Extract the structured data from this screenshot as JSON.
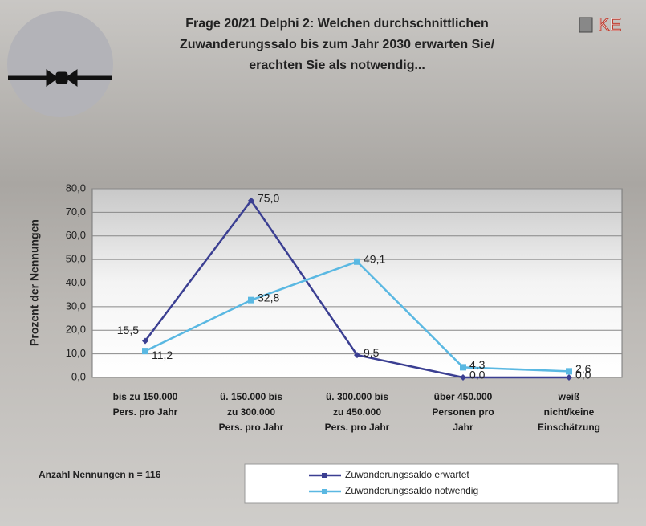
{
  "chart_data": {
    "type": "line",
    "title": [
      "Frage 20/21 Delphi 2: Welchen durchschnittlichen",
      "Zuwanderungssalo bis zum Jahr 2030 erwarten Sie/",
      "erachten Sie als notwendig..."
    ],
    "logo": "KE",
    "y_label": "Prozent der Nennungen",
    "annotation": "Anzahl Nennungen n = 116",
    "categories": [
      [
        "bis zu 150.000",
        "Pers. pro Jahr"
      ],
      [
        "ü. 150.000 bis",
        "zu 300.000",
        "Pers. pro Jahr"
      ],
      [
        "ü. 300.000 bis",
        "zu 450.000",
        "Pers. pro Jahr"
      ],
      [
        "über 450.000",
        "Personen pro",
        "Jahr"
      ],
      [
        "weiß",
        "nicht/keine",
        "Einschätzung"
      ]
    ],
    "series": [
      {
        "name": "Zuwanderungssaldo erwartet",
        "color": "#3b3f92",
        "values": [
          15.5,
          75.0,
          9.5,
          0.0,
          0.0
        ],
        "value_labels": [
          "15,5",
          "75,0",
          "9,5",
          "0,0",
          "0,0"
        ]
      },
      {
        "name": "Zuwanderungssaldo notwendig",
        "color": "#5ab8e2",
        "values": [
          11.2,
          32.8,
          49.1,
          4.3,
          2.6
        ],
        "value_labels": [
          "11,2",
          "32,8",
          "49,1",
          "4,3",
          "2,6"
        ]
      }
    ],
    "ylim": [
      0,
      80
    ],
    "yticks": [
      {
        "value": 0,
        "label": "0,0"
      },
      {
        "value": 10,
        "label": "10,0"
      },
      {
        "value": 20,
        "label": "20,0"
      },
      {
        "value": 30,
        "label": "30,0"
      },
      {
        "value": 40,
        "label": "40,0"
      },
      {
        "value": 50,
        "label": "50,0"
      },
      {
        "value": 60,
        "label": "60,0"
      },
      {
        "value": 70,
        "label": "70,0"
      },
      {
        "value": 80,
        "label": "80,0"
      }
    ],
    "grid": true
  }
}
